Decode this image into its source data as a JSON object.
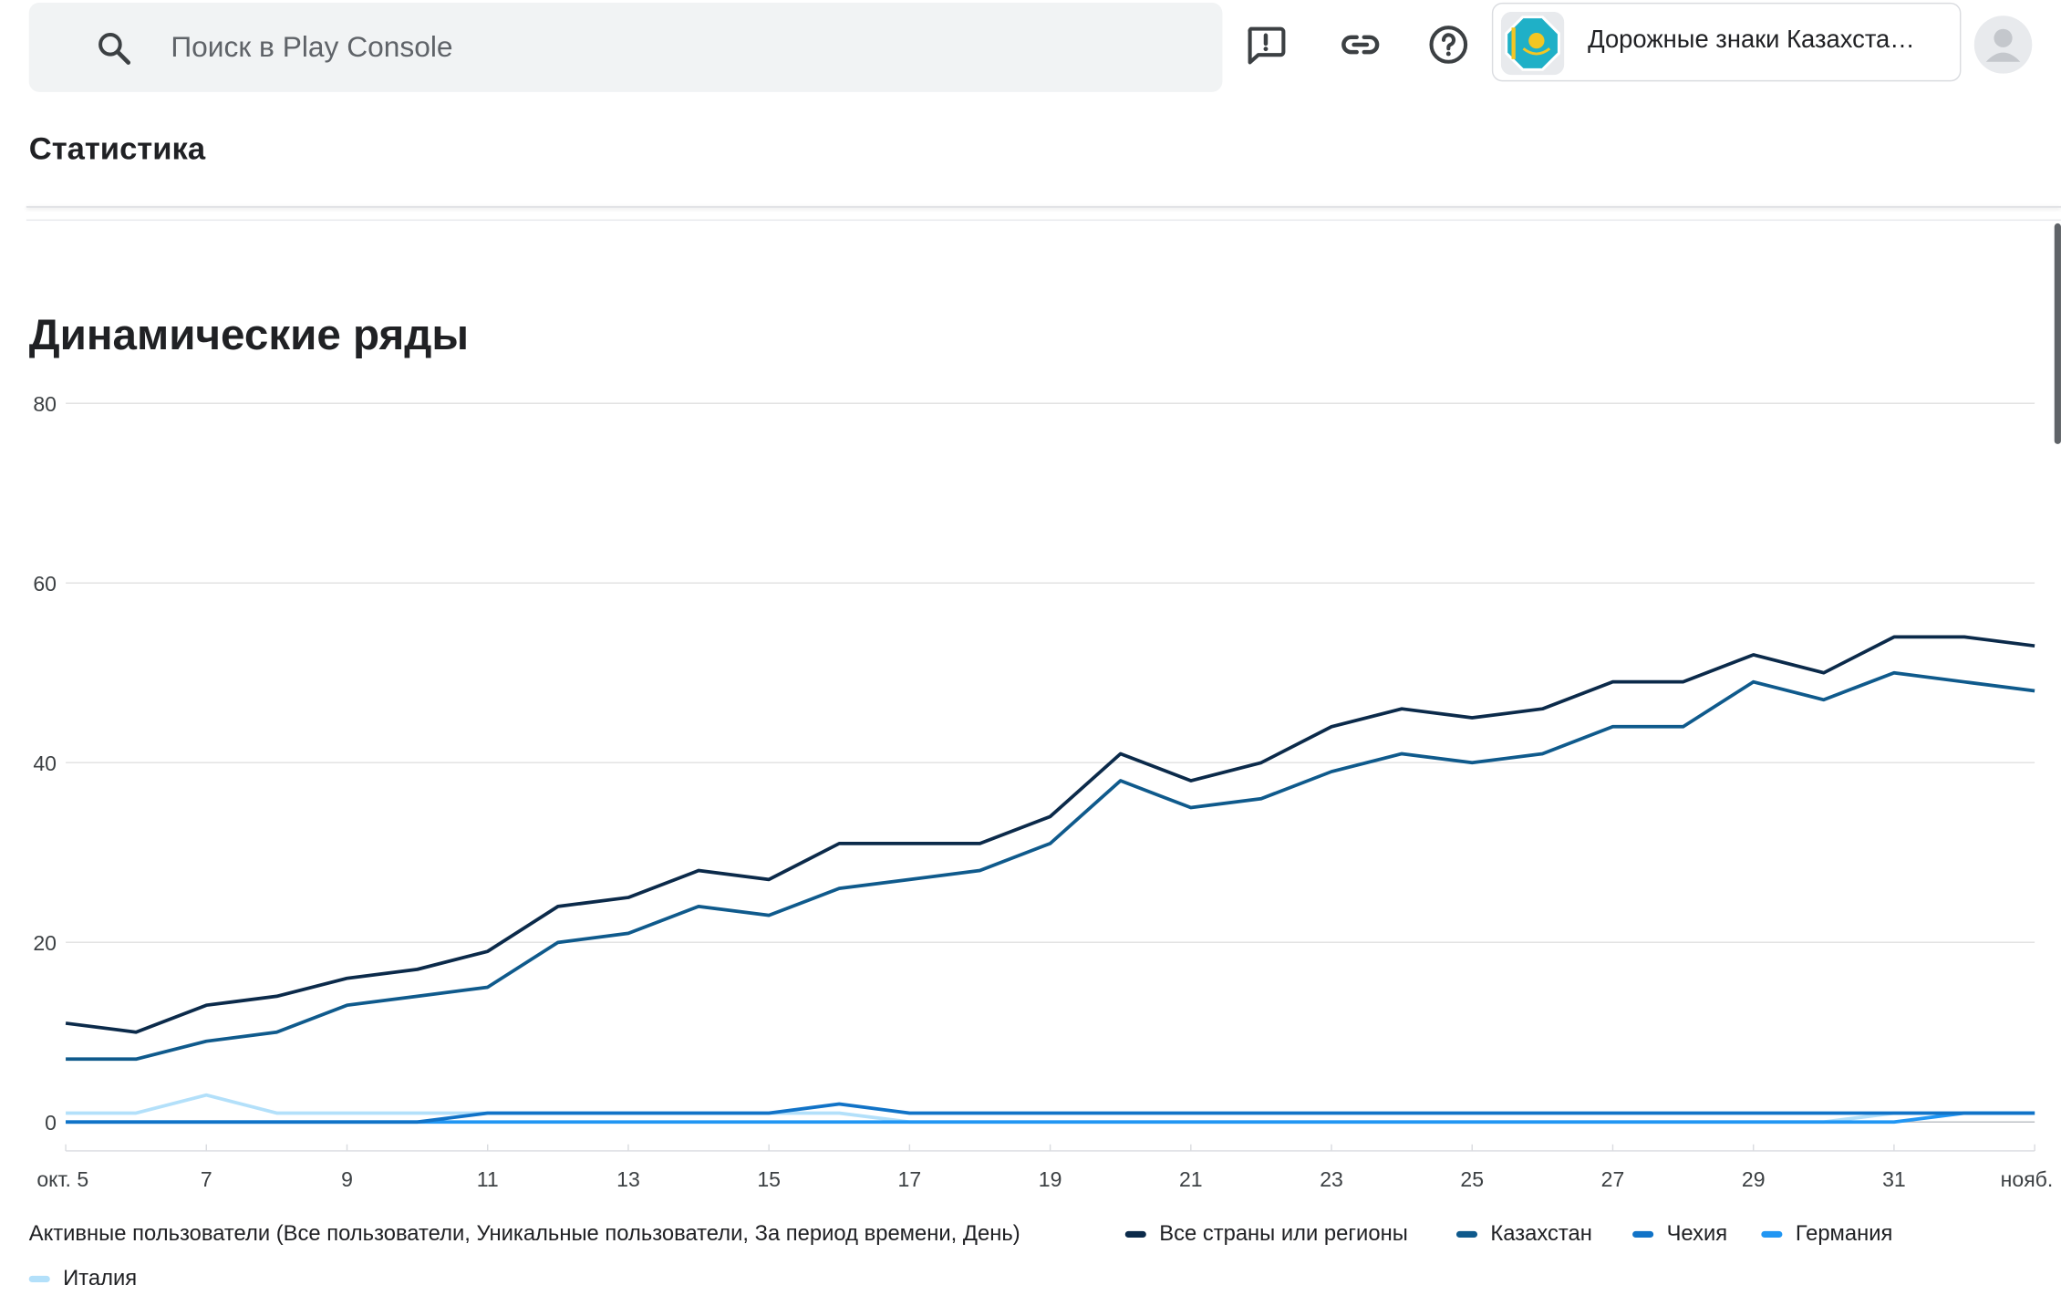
{
  "header": {
    "search_placeholder": "Поиск в Play Console",
    "app_name": "Дорожные знаки Казахста…"
  },
  "page": {
    "title": "Статистика",
    "section_title": "Динамические ряды"
  },
  "icons": {
    "search": "search-icon",
    "feedback": "feedback-icon",
    "link": "link-icon",
    "help": "help-icon",
    "app": "app-icon",
    "avatar": "avatar-icon"
  },
  "chart_data": {
    "type": "line",
    "ylim": [
      0,
      80
    ],
    "yticks": [
      "0",
      "20",
      "40",
      "60",
      "80"
    ],
    "x": [
      "окт. 5",
      "6",
      "7",
      "8",
      "9",
      "10",
      "11",
      "12",
      "13",
      "14",
      "15",
      "16",
      "17",
      "18",
      "19",
      "20",
      "21",
      "22",
      "23",
      "24",
      "25",
      "26",
      "27",
      "28",
      "29",
      "30",
      "31",
      "нояб. 1",
      "нояб."
    ],
    "xtick_labels": [
      "окт. 5",
      "7",
      "9",
      "11",
      "13",
      "15",
      "17",
      "19",
      "21",
      "23",
      "25",
      "27",
      "29",
      "31",
      "нояб."
    ],
    "legend_title": "Активные пользователи (Все пользователи, Уникальные пользователи, За период времени, День)",
    "legend_position": "bottom",
    "series": [
      {
        "name": "Все страны или регионы",
        "color": "#0b2a4a",
        "values": [
          11,
          10,
          13,
          14,
          16,
          17,
          19,
          24,
          25,
          28,
          27,
          31,
          31,
          31,
          34,
          41,
          38,
          40,
          44,
          46,
          45,
          46,
          49,
          49,
          52,
          50,
          54,
          54,
          53
        ]
      },
      {
        "name": "Казахстан",
        "color": "#0f5a8c",
        "values": [
          7,
          7,
          9,
          10,
          13,
          14,
          15,
          20,
          21,
          24,
          23,
          26,
          27,
          28,
          31,
          38,
          35,
          36,
          39,
          41,
          40,
          41,
          44,
          44,
          49,
          47,
          50,
          49,
          48
        ]
      },
      {
        "name": "Чехия",
        "color": "#1173c7",
        "values": [
          0,
          0,
          0,
          0,
          0,
          0,
          1,
          1,
          1,
          1,
          1,
          2,
          1,
          1,
          1,
          1,
          1,
          1,
          1,
          1,
          1,
          1,
          1,
          1,
          1,
          1,
          1,
          1,
          1
        ]
      },
      {
        "name": "Германия",
        "color": "#2196f3",
        "values": [
          0,
          0,
          0,
          0,
          0,
          0,
          0,
          0,
          0,
          0,
          0,
          0,
          0,
          0,
          0,
          0,
          0,
          0,
          0,
          0,
          0,
          0,
          0,
          0,
          0,
          0,
          0,
          1,
          1
        ]
      },
      {
        "name": "Италия",
        "color": "#b3e0fa",
        "values": [
          1,
          1,
          3,
          1,
          1,
          1,
          1,
          1,
          1,
          1,
          1,
          1,
          0,
          0,
          0,
          0,
          0,
          0,
          0,
          0,
          0,
          0,
          0,
          0,
          0,
          0,
          1,
          1,
          1
        ]
      }
    ]
  }
}
